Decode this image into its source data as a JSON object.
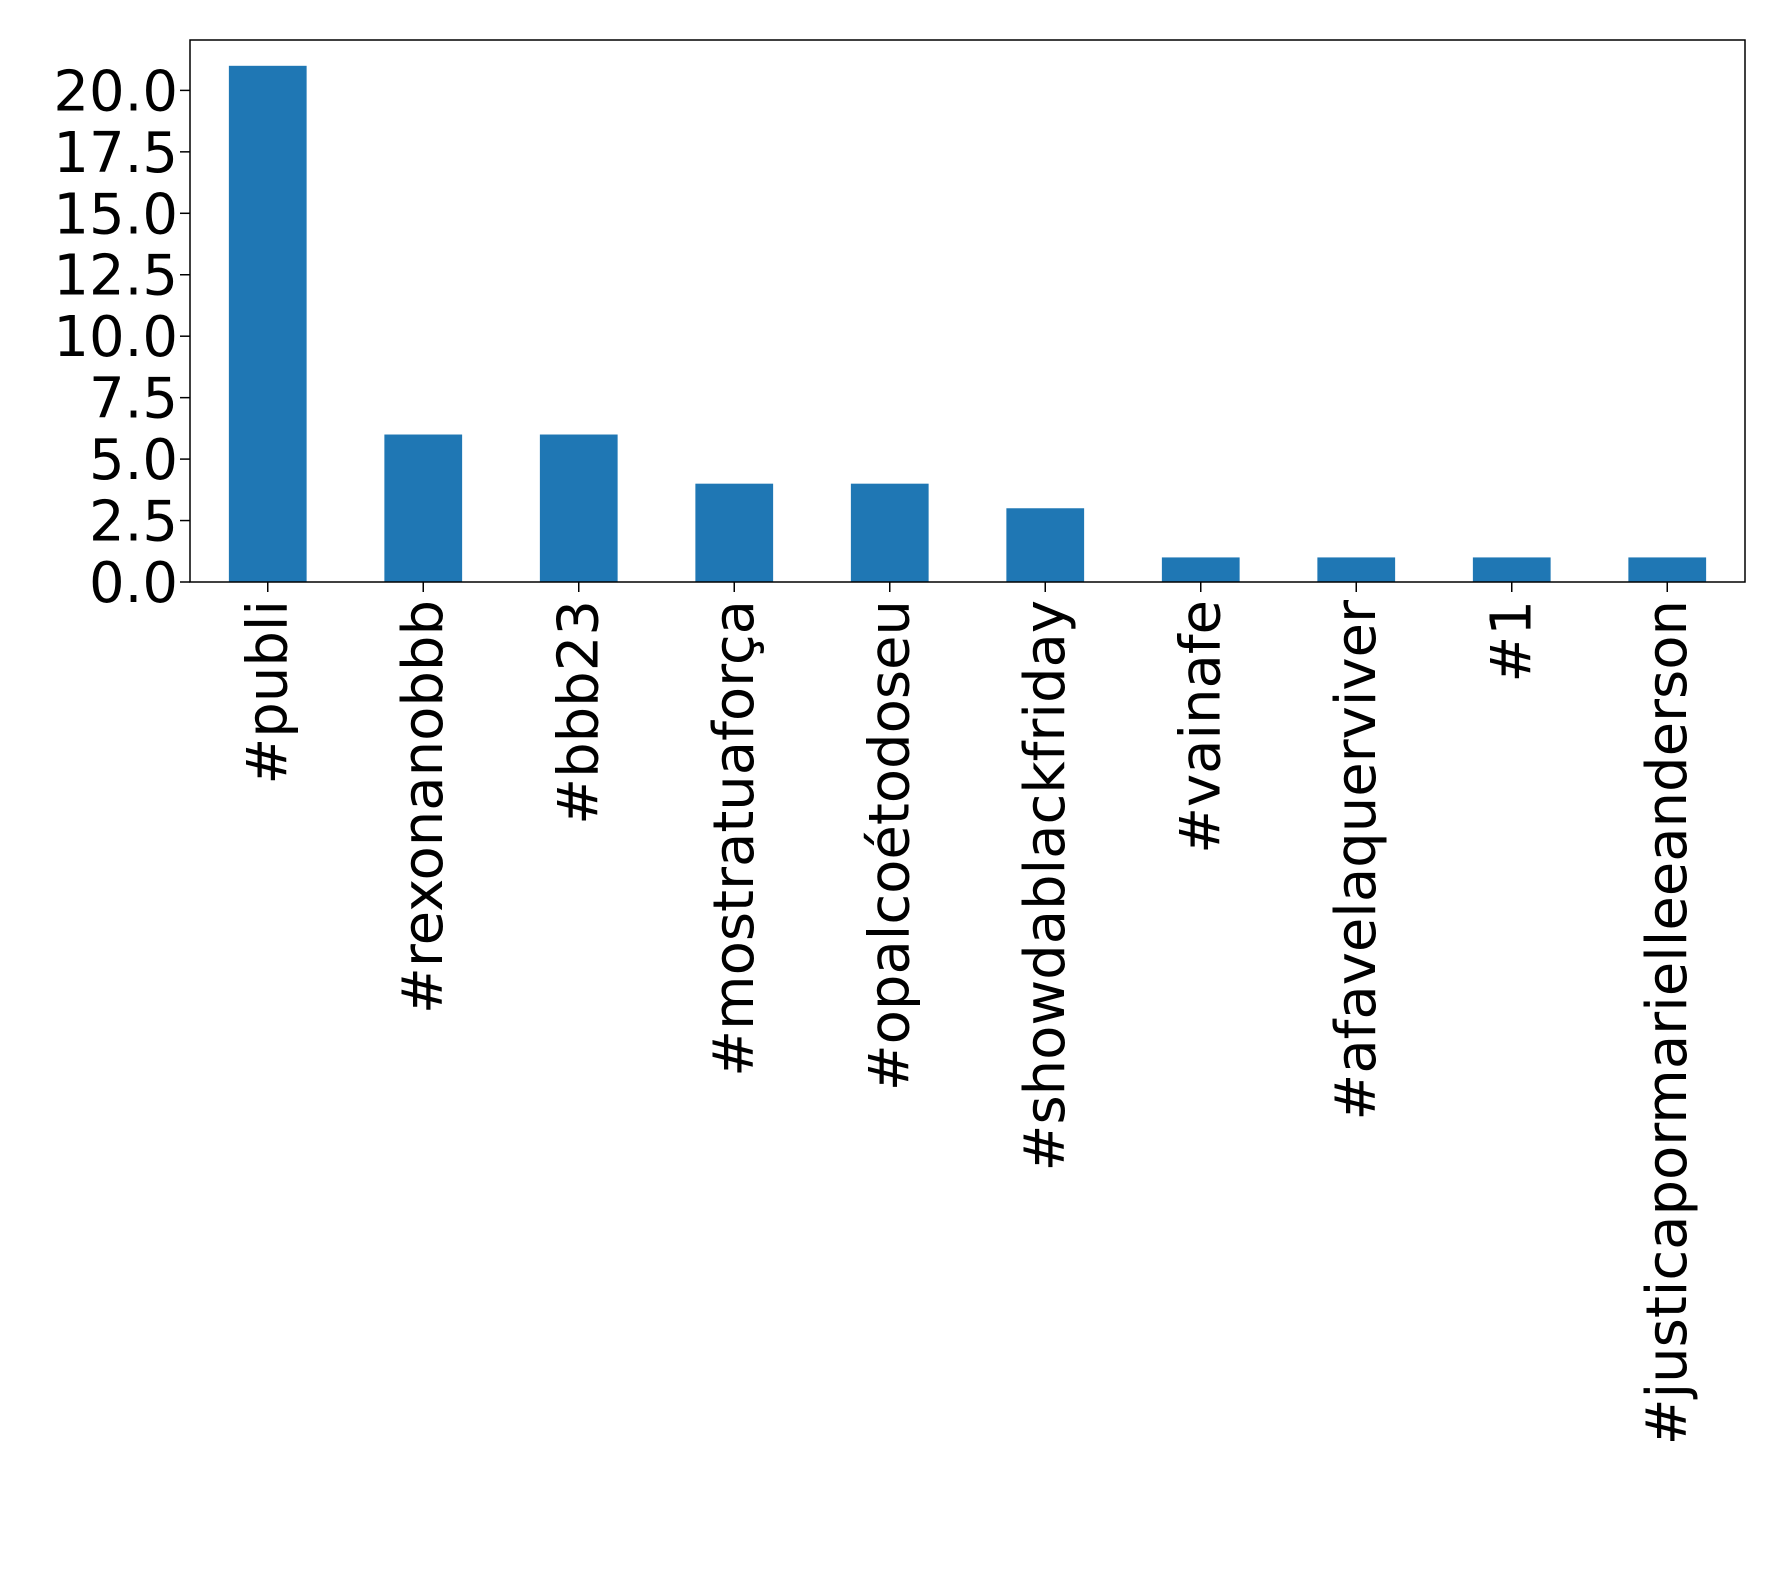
{
  "chart_data": {
    "type": "bar",
    "title": "",
    "xlabel": "",
    "ylabel": "",
    "categories": [
      "#publi",
      "#rexonanobbb",
      "#bbb23",
      "#mostratuaforça",
      "#opalcoétodoseu",
      "#showdablackfriday",
      "#vainafe",
      "#afavelaquerviver",
      "#1",
      "#justicapormarielleeanderson"
    ],
    "values": [
      21,
      6,
      6,
      4,
      4,
      3,
      1,
      1,
      1,
      1
    ],
    "ylim": [
      0,
      22.05
    ],
    "yticks": [
      "0.0",
      "2.5",
      "5.0",
      "7.5",
      "10.0",
      "12.5",
      "15.0",
      "17.5",
      "20.0"
    ],
    "ytick_values": [
      0,
      2.5,
      5,
      7.5,
      10,
      12.5,
      15,
      17.5,
      20
    ],
    "bar_color": "#1f77b4",
    "grid": false,
    "legend": "none"
  }
}
